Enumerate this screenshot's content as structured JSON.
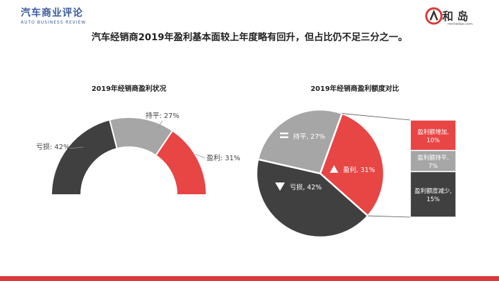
{
  "header": {
    "logo_left_cn": "汽车商业评论",
    "logo_right_brand": "和 岛",
    "logo_right_url": "renhedao.com"
  },
  "headline": "汽车经销商2019年盈利基本面较上年度略有回升，但占比仍不足三分之一。",
  "colors": {
    "loss": "#404040",
    "flat": "#a6a6a6",
    "profit": "#e84545",
    "accent": "#d93a3a"
  },
  "chart_data": [
    {
      "type": "pie",
      "variant": "half-donut",
      "title": "2019年经销商盈利状况",
      "slices": [
        {
          "label": "亏损: 42%",
          "value": 42
        },
        {
          "label": "持平: 27%",
          "value": 27
        },
        {
          "label": "盈利: 31%",
          "value": 31
        }
      ]
    },
    {
      "type": "pie",
      "title": "2019年经销商盈利额度对比",
      "slices": [
        {
          "label": "盈利, 31%",
          "value": 31
        },
        {
          "label": "亏损, 42%",
          "value": 42
        },
        {
          "label": "持平, 27%",
          "value": 27
        }
      ],
      "breakdown": {
        "of": "盈利",
        "items": [
          {
            "label": "盈利额增加,",
            "value_label": "10%",
            "value": 10
          },
          {
            "label": "盈利额持平,",
            "value_label": "7%",
            "value": 7
          },
          {
            "label": "盈利额度减少,",
            "value_label": "15%",
            "value": 15
          }
        ]
      }
    }
  ]
}
